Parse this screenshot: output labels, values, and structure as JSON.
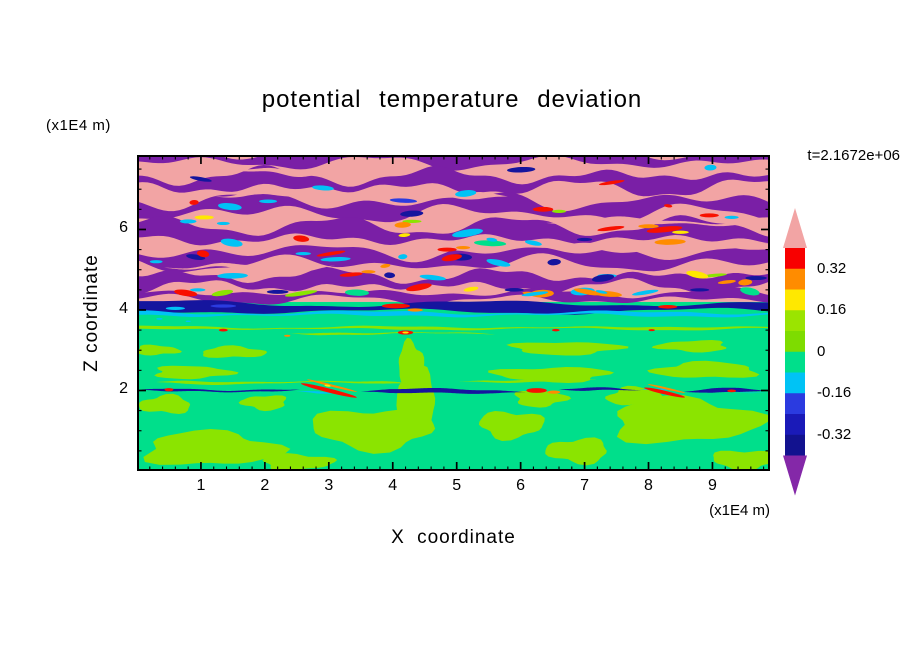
{
  "chart_data": {
    "type": "heatmap",
    "title": "potential temperature deviation",
    "time_label": "t=2.1672e+06",
    "xlabel": "X coordinate",
    "ylabel": "Z coordinate",
    "x_unit": "(x1E4 m)",
    "y_unit": "(x1E4 m)",
    "xlim": [
      0,
      9.9
    ],
    "ylim": [
      0,
      7.85
    ],
    "x_ticks": [
      1,
      2,
      3,
      4,
      5,
      6,
      7,
      8,
      9
    ],
    "x_minor_step": 0.2,
    "y_ticks": [
      2,
      4,
      6
    ],
    "y_minor_step": 0.5,
    "colorbar": {
      "labels": [
        "0.32",
        "0.16",
        "0",
        "-0.16",
        "-0.32"
      ],
      "label_boundaries": [
        1,
        3,
        5,
        7,
        9
      ],
      "levels": [
        0.4,
        0.32,
        0.24,
        0.16,
        0.08,
        0,
        -0.08,
        -0.16,
        -0.24,
        -0.32,
        -0.4
      ],
      "colors": [
        "#F80000",
        "#FF8C00",
        "#FFE800",
        "#9BE400",
        "#7EDC00",
        "#00DF8B",
        "#00C3F5",
        "#2B3BE0",
        "#1A1AB8",
        "#12128F"
      ],
      "arrow_top": "#F2A4A4",
      "arrow_bottom": "#8428A8"
    },
    "palette": {
      "pink": "#F2A4A4",
      "purple": "#7A1FA6",
      "red": "#F81000",
      "orange": "#FF8C00",
      "yellow": "#FFE800",
      "chartreuse": "#8BE400",
      "green": "#00DF8B",
      "cyan": "#00C3F5",
      "blue": "#2B3BE0",
      "navy": "#15159E"
    },
    "field": {
      "upper_base_z": 4.2,
      "bands": [
        {
          "c": "purple",
          "v": [
            7.78,
            0.34,
            0.1,
            3.1,
            0.5,
            0.05,
            1.1,
            2.1,
            2.4,
            1.0
          ]
        },
        {
          "c": "purple",
          "v": [
            7.18,
            0.42,
            0.13,
            2.5,
            2.7,
            0.06,
            0.9,
            0.3,
            3.1,
            4.0
          ]
        },
        {
          "c": "purple",
          "v": [
            6.55,
            0.44,
            0.14,
            3.4,
            4.4,
            0.07,
            1.2,
            1.9,
            2.0,
            2.5
          ]
        },
        {
          "c": "purple",
          "v": [
            5.92,
            0.46,
            0.13,
            2.8,
            1.2,
            0.06,
            1.0,
            5.0,
            2.7,
            0.2
          ]
        },
        {
          "c": "purple",
          "v": [
            5.3,
            0.44,
            0.12,
            3.6,
            3.3,
            0.07,
            1.3,
            2.6,
            2.2,
            5.1
          ]
        },
        {
          "c": "purple",
          "v": [
            4.72,
            0.38,
            0.1,
            2.3,
            5.6,
            0.05,
            0.8,
            3.8,
            3.0,
            1.8
          ]
        },
        {
          "c": "purple",
          "v": [
            4.34,
            0.24,
            0.07,
            2.9,
            0.9,
            0.04,
            1.1,
            4.6,
            2.5,
            3.3
          ]
        },
        {
          "c": "pink",
          "v": [
            6.88,
            0.16,
            0.06,
            2.2,
            1.4,
            0.03,
            0.9,
            0.8,
            2.8,
            2.2,
            1.2,
            5.8
          ]
        },
        {
          "c": "pink",
          "v": [
            5.55,
            0.14,
            0.05,
            2.6,
            4.2,
            0.03,
            1.0,
            1.5,
            2.4,
            0.6,
            4.5,
            9.9
          ]
        },
        {
          "c": "pink",
          "v": [
            7.45,
            0.13,
            0.05,
            2.0,
            2.8,
            0.03,
            0.8,
            3.9,
            2.6,
            1.2,
            0.0,
            3.6
          ]
        },
        {
          "c": "pink",
          "v": [
            6.18,
            0.13,
            0.05,
            2.4,
            0.2,
            0.03,
            1.1,
            2.7,
            2.9,
            4.4,
            6.4,
            9.9
          ]
        },
        {
          "c": "pink",
          "v": [
            5.06,
            0.12,
            0.04,
            2.1,
            3.6,
            0.03,
            0.9,
            5.2,
            2.5,
            2.9,
            0.4,
            3.1
          ]
        },
        {
          "c": "navy",
          "v": [
            4.06,
            0.27,
            0.04,
            4.5,
            1.1,
            0.02,
            1.6,
            2.9,
            5.0,
            0.4
          ]
        },
        {
          "c": "cyan",
          "v": [
            3.9,
            0.1,
            0.03,
            3.8,
            2.3,
            0.02,
            1.4,
            0.7,
            4.2,
            1.9
          ]
        },
        {
          "c": "chartreuse",
          "v": [
            3.55,
            0.07,
            0.02,
            3.2,
            0.9,
            0.01,
            1.2,
            2.2,
            4.0,
            1.1
          ]
        },
        {
          "c": "chartreuse",
          "v": [
            3.42,
            0.05,
            0.02,
            2.7,
            3.7,
            0.01,
            1.0,
            0.5,
            3.5,
            2.8,
            2.4,
            5.6
          ]
        },
        {
          "c": "chartreuse",
          "v": [
            2.2,
            0.07,
            0.02,
            3.0,
            1.7,
            0.01,
            1.1,
            4.1,
            3.8,
            0.3,
            0.3,
            4.3
          ]
        },
        {
          "c": "chartreuse",
          "v": [
            2.24,
            0.06,
            0.02,
            2.8,
            4.9,
            0.01,
            0.9,
            1.8,
            3.3,
            2.0,
            5.0,
            7.2
          ]
        },
        {
          "c": "navy",
          "v": [
            2.0,
            0.11,
            0.02,
            2.2,
            0.4,
            0.01,
            0.9,
            1.2,
            4.6,
            2.7,
            0.05,
            2.55
          ]
        },
        {
          "c": "navy",
          "v": [
            1.98,
            0.1,
            0.02,
            2.5,
            2.9,
            0.01,
            1.0,
            3.4,
            4.1,
            0.8,
            3.5,
            6.08
          ]
        },
        {
          "c": "navy",
          "v": [
            2.02,
            0.1,
            0.02,
            2.1,
            5.1,
            0.01,
            0.8,
            0.6,
            3.9,
            4.2,
            6.6,
            7.9
          ]
        },
        {
          "c": "navy",
          "v": [
            1.99,
            0.1,
            0.02,
            2.4,
            1.9,
            0.01,
            1.1,
            5.5,
            4.4,
            1.5,
            8.55,
            9.88
          ]
        },
        {
          "c": "cyan",
          "v": [
            1.96,
            0.07,
            0.02,
            2.0,
            0.8,
            0.01,
            0.9,
            2.5,
            3.6,
            3.1,
            2.5,
            3.15
          ]
        },
        {
          "c": "cyan",
          "v": [
            2.0,
            0.06,
            0.02,
            2.3,
            4.4,
            0.01,
            1.0,
            1.1,
            3.8,
            0.9,
            7.85,
            8.5
          ]
        },
        {
          "c": "cyan",
          "v": [
            1.97,
            0.06,
            0.02,
            2.2,
            2.2,
            0.01,
            0.8,
            4.8,
            4.0,
            2.4,
            9.3,
            9.88
          ]
        }
      ],
      "blobs": [
        [
          1.15,
          0.55,
          1.05,
          0.42,
          0.7,
          2.1
        ],
        [
          2.5,
          0.22,
          0.55,
          0.2,
          1.9,
          4.0
        ],
        [
          3.7,
          1.05,
          0.95,
          0.5,
          3.3,
          0.4
        ],
        [
          4.38,
          1.8,
          0.3,
          0.7,
          5.0,
          1.6
        ],
        [
          4.28,
          2.7,
          0.2,
          0.5,
          0.9,
          3.8
        ],
        [
          5.85,
          1.15,
          0.5,
          0.33,
          2.6,
          5.2
        ],
        [
          6.9,
          0.5,
          0.48,
          0.3,
          4.4,
          1.0
        ],
        [
          8.55,
          1.25,
          1.15,
          0.55,
          1.2,
          2.9
        ],
        [
          9.5,
          0.28,
          0.5,
          0.24,
          3.0,
          0.2
        ],
        [
          0.45,
          1.65,
          0.4,
          0.22,
          5.5,
          2.4
        ],
        [
          7.8,
          1.85,
          0.45,
          0.22,
          0.3,
          4.6
        ],
        [
          6.3,
          1.8,
          0.4,
          0.2,
          2.2,
          1.3
        ],
        [
          2.0,
          1.7,
          0.35,
          0.18,
          4.0,
          5.7
        ],
        [
          0.85,
          2.45,
          0.6,
          0.16,
          1.5,
          0.8
        ],
        [
          6.5,
          2.4,
          0.9,
          0.18,
          3.7,
          2.0
        ],
        [
          8.9,
          2.5,
          0.8,
          0.2,
          5.9,
          4.3
        ],
        [
          1.5,
          2.95,
          0.5,
          0.14,
          0.5,
          3.2
        ],
        [
          6.7,
          3.05,
          0.85,
          0.16,
          2.8,
          1.7
        ],
        [
          8.7,
          3.1,
          0.55,
          0.14,
          4.7,
          0.1
        ],
        [
          0.3,
          3.0,
          0.35,
          0.12,
          1.1,
          5.4
        ]
      ],
      "spots": [
        [
          8.25,
          6.0,
          0.28,
          0.07,
          "red",
          -6
        ],
        [
          8.0,
          6.08,
          0.16,
          0.05,
          "orange",
          0
        ],
        [
          8.5,
          5.93,
          0.13,
          0.04,
          "yellow",
          0
        ],
        [
          8.95,
          6.35,
          0.15,
          0.05,
          "red",
          0
        ],
        [
          9.3,
          6.3,
          0.11,
          0.04,
          "cyan",
          0
        ],
        [
          6.35,
          6.5,
          0.16,
          0.06,
          "red",
          0
        ],
        [
          6.6,
          6.45,
          0.11,
          0.04,
          "chartreuse",
          0
        ],
        [
          4.85,
          5.5,
          0.15,
          0.05,
          "red",
          0
        ],
        [
          5.1,
          5.55,
          0.11,
          0.04,
          "orange",
          0
        ],
        [
          3.35,
          4.88,
          0.18,
          0.05,
          "red",
          -5
        ],
        [
          3.62,
          4.95,
          0.11,
          0.04,
          "orange",
          0
        ],
        [
          1.05,
          6.3,
          0.15,
          0.05,
          "yellow",
          0
        ],
        [
          0.8,
          6.2,
          0.13,
          0.05,
          "cyan",
          0
        ],
        [
          1.35,
          6.15,
          0.1,
          0.04,
          "cyan",
          0
        ],
        [
          2.05,
          6.7,
          0.14,
          0.045,
          "cyan",
          0
        ],
        [
          5.15,
          6.9,
          0.15,
          0.04,
          "cyan",
          0
        ],
        [
          7.35,
          4.85,
          0.15,
          0.045,
          "cyan",
          0
        ],
        [
          2.6,
          5.4,
          0.12,
          0.04,
          "cyan",
          0
        ],
        [
          0.3,
          5.2,
          0.1,
          0.04,
          "cyan",
          0
        ],
        [
          4.3,
          6.2,
          0.15,
          0.04,
          "chartreuse",
          0
        ],
        [
          7.0,
          5.75,
          0.12,
          0.04,
          "navy",
          0
        ],
        [
          5.9,
          4.5,
          0.15,
          0.045,
          "navy",
          0
        ],
        [
          2.2,
          4.45,
          0.17,
          0.05,
          "navy",
          0
        ],
        [
          0.95,
          4.5,
          0.12,
          0.04,
          "cyan",
          0
        ],
        [
          8.8,
          4.5,
          0.15,
          0.04,
          "navy",
          0
        ],
        [
          4.05,
          4.1,
          0.22,
          0.06,
          "red",
          0
        ],
        [
          4.35,
          4.0,
          0.12,
          0.04,
          "orange",
          0
        ],
        [
          8.3,
          4.08,
          0.15,
          0.045,
          "red",
          0
        ],
        [
          0.6,
          4.04,
          0.15,
          0.04,
          "cyan",
          0
        ],
        [
          1.35,
          4.1,
          0.2,
          0.04,
          "blue",
          0
        ],
        [
          1.35,
          3.5,
          0.07,
          0.035,
          "red",
          0
        ],
        [
          4.2,
          3.44,
          0.12,
          0.05,
          "red",
          0
        ],
        [
          4.2,
          3.44,
          0.05,
          0.025,
          "yellow",
          0
        ],
        [
          6.55,
          3.5,
          0.06,
          0.03,
          "red",
          0
        ],
        [
          8.05,
          3.5,
          0.05,
          0.025,
          "red",
          0
        ],
        [
          2.35,
          3.36,
          0.05,
          0.025,
          "orange",
          0
        ],
        [
          0.35,
          3.78,
          0.05,
          0.025,
          "cyan",
          0
        ],
        [
          0.8,
          3.72,
          0.04,
          0.02,
          "cyan",
          0
        ],
        [
          3.0,
          2.0,
          0.45,
          0.05,
          "red",
          14
        ],
        [
          3.05,
          2.12,
          0.4,
          0.028,
          "orange",
          14
        ],
        [
          8.25,
          1.95,
          0.33,
          0.045,
          "red",
          13
        ],
        [
          8.28,
          2.05,
          0.3,
          0.025,
          "orange",
          13
        ],
        [
          6.25,
          2.0,
          0.16,
          0.06,
          "red",
          0
        ],
        [
          6.52,
          1.96,
          0.1,
          0.04,
          "orange",
          0
        ],
        [
          0.5,
          2.02,
          0.07,
          0.04,
          "red",
          0
        ],
        [
          9.3,
          1.99,
          0.07,
          0.035,
          "red",
          0
        ],
        [
          2.98,
          2.12,
          0.05,
          0.025,
          "yellow",
          10
        ]
      ],
      "sprinkle": {
        "seed": 11,
        "count": 55,
        "zmin": 4.4,
        "zmax": 7.65,
        "colors": [
          "cyan",
          "cyan",
          "cyan",
          "cyan",
          "red",
          "red",
          "orange",
          "orange",
          "navy",
          "navy",
          "yellow",
          "chartreuse",
          "blue",
          "green",
          "red"
        ]
      }
    }
  }
}
